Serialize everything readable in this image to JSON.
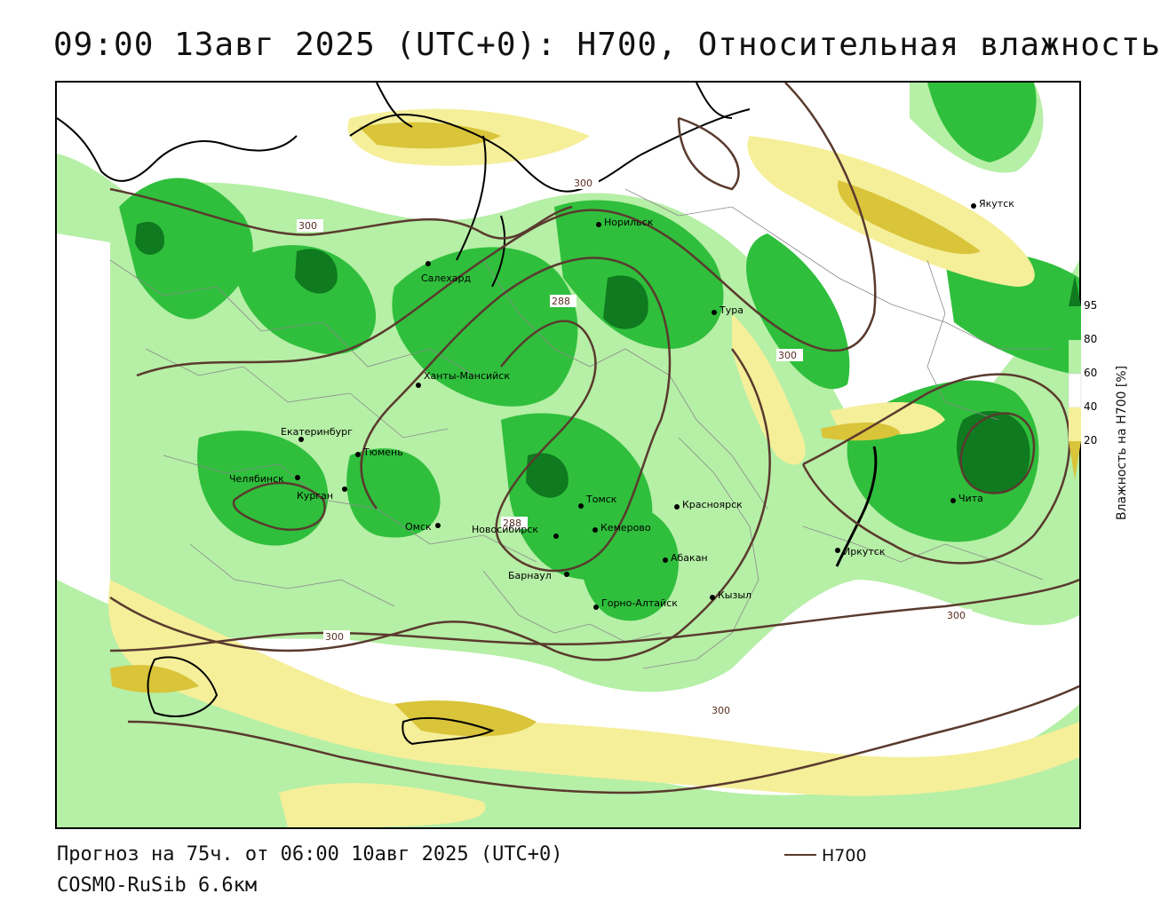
{
  "title": "09:00 13авг 2025 (UTC+0): H700, Относительная влажность",
  "footer": {
    "forecast": "Прогноз на 75ч. от 06:00 10авг 2025 (UTC+0)",
    "model": "COSMO-RuSib 6.6км"
  },
  "legend": {
    "line_label": "H700",
    "line_color": "#5a3a2e"
  },
  "colorbar": {
    "title": "Влажность на H700 [%]",
    "ticks": [
      "95",
      "80",
      "60",
      "40",
      "20"
    ],
    "colors": {
      "c95": "#0f7a1f",
      "c80": "#2fbf3c",
      "c60": "#b6efa6",
      "c40": "#ffffff",
      "c20": "#f5ef9a",
      "c0": "#d9c43a"
    }
  },
  "cities": [
    {
      "name": "Якутск",
      "id": "yakutsk"
    },
    {
      "name": "Норильск",
      "id": "norilsk"
    },
    {
      "name": "Салехард",
      "id": "salekhard"
    },
    {
      "name": "Тура",
      "id": "tura"
    },
    {
      "name": "Ханты-Мансийск",
      "id": "khanty"
    },
    {
      "name": "Екатеринбург",
      "id": "ekb"
    },
    {
      "name": "Тюмень",
      "id": "tyumen"
    },
    {
      "name": "Челябинск",
      "id": "chelyabinsk"
    },
    {
      "name": "Курган",
      "id": "kurgan"
    },
    {
      "name": "Омск",
      "id": "omsk"
    },
    {
      "name": "Новосибирск",
      "id": "nsk"
    },
    {
      "name": "Томск",
      "id": "tomsk"
    },
    {
      "name": "Кемерово",
      "id": "kemerovo"
    },
    {
      "name": "Красноярск",
      "id": "krasnoyarsk"
    },
    {
      "name": "Абакан",
      "id": "abakan"
    },
    {
      "name": "Барнаул",
      "id": "barnaul"
    },
    {
      "name": "Горно-Алтайск",
      "id": "gorno"
    },
    {
      "name": "Кызыл",
      "id": "kyzyl"
    },
    {
      "name": "Иркутск",
      "id": "irkutsk"
    },
    {
      "name": "Чита",
      "id": "chita"
    }
  ],
  "contour_labels": [
    "300",
    "300",
    "288",
    "300",
    "300",
    "300",
    "300",
    "288"
  ]
}
